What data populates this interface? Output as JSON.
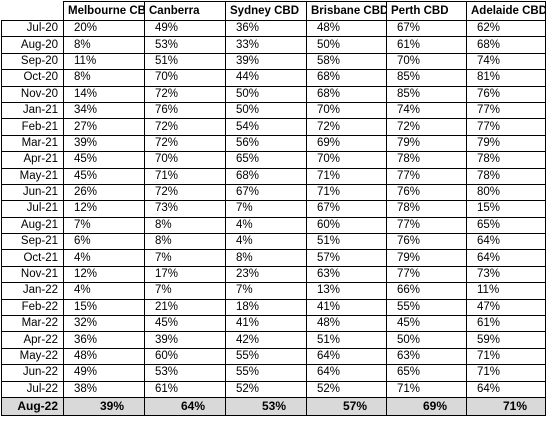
{
  "table": {
    "headers": [
      "",
      "Melbourne CBD",
      "Canberra",
      "Sydney CBD",
      "Brisbane CBD",
      "Perth CBD",
      "Adelaide CBD"
    ],
    "rows": [
      [
        "Jul-20",
        "20%",
        "49%",
        "36%",
        "48%",
        "67%",
        "62%"
      ],
      [
        "Aug-20",
        "8%",
        "53%",
        "33%",
        "50%",
        "61%",
        "68%"
      ],
      [
        "Sep-20",
        "11%",
        "51%",
        "39%",
        "58%",
        "70%",
        "74%"
      ],
      [
        "Oct-20",
        "8%",
        "70%",
        "44%",
        "68%",
        "85%",
        "81%"
      ],
      [
        "Nov-20",
        "14%",
        "72%",
        "50%",
        "68%",
        "85%",
        "76%"
      ],
      [
        "Jan-21",
        "34%",
        "76%",
        "50%",
        "70%",
        "74%",
        "77%"
      ],
      [
        "Feb-21",
        "27%",
        "72%",
        "54%",
        "72%",
        "72%",
        "77%"
      ],
      [
        "Mar-21",
        "39%",
        "72%",
        "56%",
        "69%",
        "79%",
        "79%"
      ],
      [
        "Apr-21",
        "45%",
        "70%",
        "65%",
        "70%",
        "78%",
        "78%"
      ],
      [
        "May-21",
        "45%",
        "71%",
        "68%",
        "71%",
        "77%",
        "78%"
      ],
      [
        "Jun-21",
        "26%",
        "72%",
        "67%",
        "71%",
        "76%",
        "80%"
      ],
      [
        "Jul-21",
        "12%",
        "73%",
        "7%",
        "67%",
        "78%",
        "15%"
      ],
      [
        "Aug-21",
        "7%",
        "8%",
        "4%",
        "60%",
        "77%",
        "65%"
      ],
      [
        "Sep-21",
        "6%",
        "8%",
        "4%",
        "51%",
        "76%",
        "64%"
      ],
      [
        "Oct-21",
        "4%",
        "7%",
        "8%",
        "57%",
        "79%",
        "64%"
      ],
      [
        "Nov-21",
        "12%",
        "17%",
        "23%",
        "63%",
        "77%",
        "73%"
      ],
      [
        "Jan-22",
        "4%",
        "7%",
        "7%",
        "13%",
        "66%",
        "11%"
      ],
      [
        "Feb-22",
        "15%",
        "21%",
        "18%",
        "41%",
        "55%",
        "47%"
      ],
      [
        "Mar-22",
        "32%",
        "45%",
        "41%",
        "48%",
        "45%",
        "61%"
      ],
      [
        "Apr-22",
        "36%",
        "39%",
        "42%",
        "51%",
        "50%",
        "59%"
      ],
      [
        "May-22",
        "48%",
        "60%",
        "55%",
        "64%",
        "63%",
        "71%"
      ],
      [
        "Jun-22",
        "49%",
        "53%",
        "55%",
        "64%",
        "65%",
        "71%"
      ],
      [
        "Jul-22",
        "38%",
        "61%",
        "52%",
        "52%",
        "71%",
        "64%"
      ]
    ],
    "latest_row": [
      "Aug-22",
      "39%",
      "64%",
      "53%",
      "57%",
      "69%",
      "71%"
    ],
    "latest_row_background": "#d9d9d9"
  }
}
